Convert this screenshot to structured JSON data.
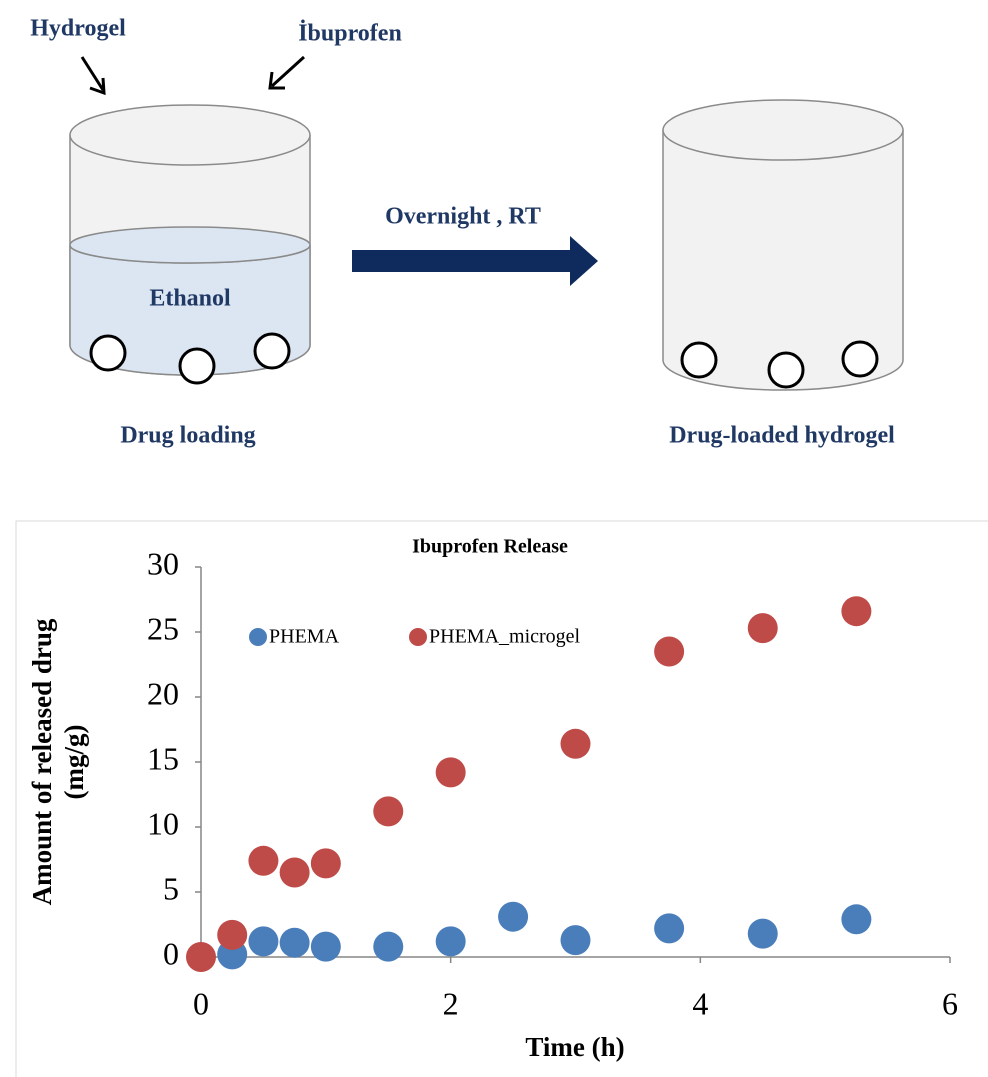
{
  "diagram": {
    "hydrogel": "Hydrogel",
    "ibuprofen": "İbuprofen",
    "ethanol": "Ethanol",
    "condition": "Overnight , RT",
    "left_caption": "Drug loading",
    "right_caption": "Drug-loaded hydrogel"
  },
  "chart_data": {
    "type": "scatter",
    "title": "Ibuprofen Release",
    "xlabel": "Time (h)",
    "ylabel": [
      "Amount of released drug",
      "(mg/g)"
    ],
    "xlim": [
      0,
      6
    ],
    "xticks": [
      0,
      2,
      4,
      6
    ],
    "ylim": [
      0,
      30
    ],
    "yticks": [
      0,
      5,
      10,
      15,
      20,
      25,
      30
    ],
    "grid": false,
    "series": [
      {
        "name": "PHEMA",
        "color": "#4a7ebb",
        "x": [
          0.25,
          0.5,
          0.75,
          1,
          1.5,
          2,
          2.5,
          3,
          3.75,
          4.5,
          5.25
        ],
        "values": [
          0.2,
          1.2,
          1.1,
          0.8,
          0.8,
          1.2,
          3.1,
          1.3,
          2.2,
          1.8,
          2.9
        ]
      },
      {
        "name": "PHEMA_microgel",
        "color": "#be4b48",
        "x": [
          0,
          0.25,
          0.5,
          0.75,
          1,
          1.5,
          2,
          3,
          3.75,
          4.5,
          5.25
        ],
        "values": [
          0,
          1.7,
          7.4,
          6.5,
          7.2,
          11.2,
          14.2,
          16.4,
          23.5,
          25.3,
          26.6
        ]
      }
    ]
  }
}
